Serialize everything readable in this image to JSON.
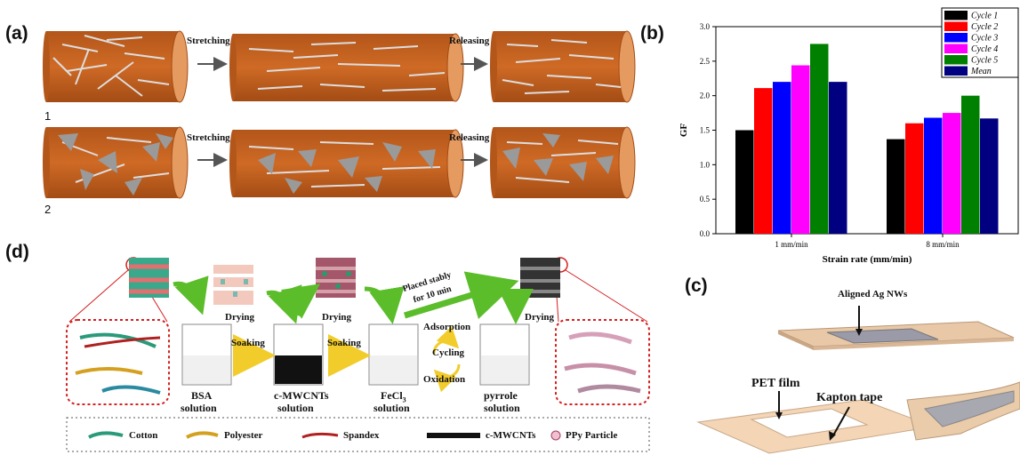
{
  "panel_a": {
    "label": "(a)",
    "row1_label": "1",
    "row2_label": "2",
    "stretching": "Stretching",
    "releasing": "Releasing",
    "colors": {
      "fiber": "#c8601e",
      "fiber_end": "#e59a5f"
    }
  },
  "panel_b": {
    "label": "(b)"
  },
  "panel_c": {
    "label": "(c)",
    "aligned": "Aligned Ag NWs",
    "pet": "PET film",
    "kapton": "Kapton tape"
  },
  "panel_d": {
    "label": "(d)",
    "drying": "Drying",
    "soaking": "Soaking",
    "placed1": "Placed stably",
    "placed2": "for 10 min",
    "adsorption": "Adsorption",
    "cycling": "Cycling",
    "oxidation": "Oxidation",
    "bsa1": "BSA",
    "bsa2": "solution",
    "cmw1": "c-MWCNTs",
    "cmw2": "solution",
    "fecl1": "FeCl",
    "fecl_sub": "3",
    "fecl2": "solution",
    "pyr1": "pyrrole",
    "pyr2": "solution",
    "legend": [
      "Cotton",
      "Polyester",
      "Spandex",
      "c-MWCNTs",
      "PPy Particle"
    ]
  },
  "chart_data": {
    "type": "bar",
    "categories": [
      "1 mm/min",
      "8 mm/min"
    ],
    "series": [
      {
        "name": "Cycle 1",
        "values": [
          1.5,
          1.37
        ],
        "color": "#000000"
      },
      {
        "name": "Cycle 2",
        "values": [
          2.11,
          1.6
        ],
        "color": "#ff0000"
      },
      {
        "name": "Cycle 3",
        "values": [
          2.2,
          1.68
        ],
        "color": "#0000ff"
      },
      {
        "name": "Cycle 4",
        "values": [
          2.44,
          1.75
        ],
        "color": "#ff00ff"
      },
      {
        "name": "Cycle 5",
        "values": [
          2.75,
          2.0
        ],
        "color": "#008000"
      },
      {
        "name": "Mean",
        "values": [
          2.2,
          1.67
        ],
        "color": "#000080"
      }
    ],
    "xlabel": "Strain rate (mm/min)",
    "ylabel": "GF",
    "ylim": [
      0,
      3.0
    ],
    "yticks": [
      "0.0",
      "0.5",
      "1.0",
      "1.5",
      "2.0",
      "2.5",
      "3.0"
    ],
    "legend_position": "top-right",
    "grid": false
  }
}
